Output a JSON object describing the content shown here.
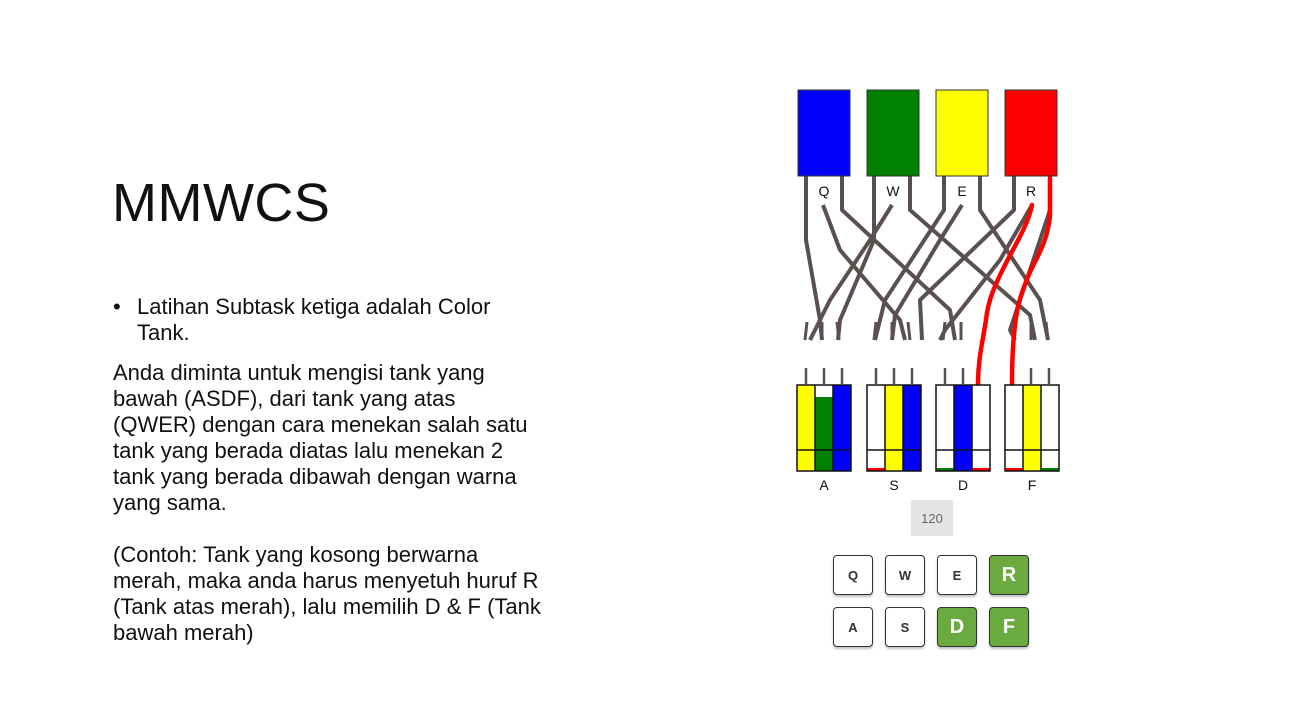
{
  "slide": {
    "title": "MMWCS",
    "bullet": "Latihan Subtask ketiga adalah Color Tank.",
    "paragraph1": "Anda diminta untuk mengisi tank yang bawah (ASDF), dari tank yang atas (QWER) dengan cara menekan salah satu tank yang berada diatas lalu menekan 2 tank yang berada dibawah dengan warna yang sama.",
    "paragraph2": "(Contoh: Tank yang kosong berwarna merah, maka anda harus menyetuh huruf R (Tank atas merah), lalu memilih D & F (Tank bawah merah)"
  },
  "colors": {
    "blue": "#0000ff",
    "green": "#008000",
    "yellow": "#ffff00",
    "red": "#ff0000",
    "wire": "#5a5050",
    "key_active": "#6aaa3e"
  },
  "top_tanks": [
    {
      "label": "Q",
      "color": "blue"
    },
    {
      "label": "W",
      "color": "green"
    },
    {
      "label": "E",
      "color": "yellow"
    },
    {
      "label": "R",
      "color": "red"
    }
  ],
  "bottom_tanks": [
    {
      "label": "A"
    },
    {
      "label": "S"
    },
    {
      "label": "D"
    },
    {
      "label": "F"
    }
  ],
  "counter": "120",
  "keys": [
    {
      "label": "Q",
      "active": false
    },
    {
      "label": "W",
      "active": false
    },
    {
      "label": "E",
      "active": false
    },
    {
      "label": "R",
      "active": true
    },
    {
      "label": "A",
      "active": false
    },
    {
      "label": "S",
      "active": false
    },
    {
      "label": "D",
      "active": true
    },
    {
      "label": "F",
      "active": true
    }
  ]
}
